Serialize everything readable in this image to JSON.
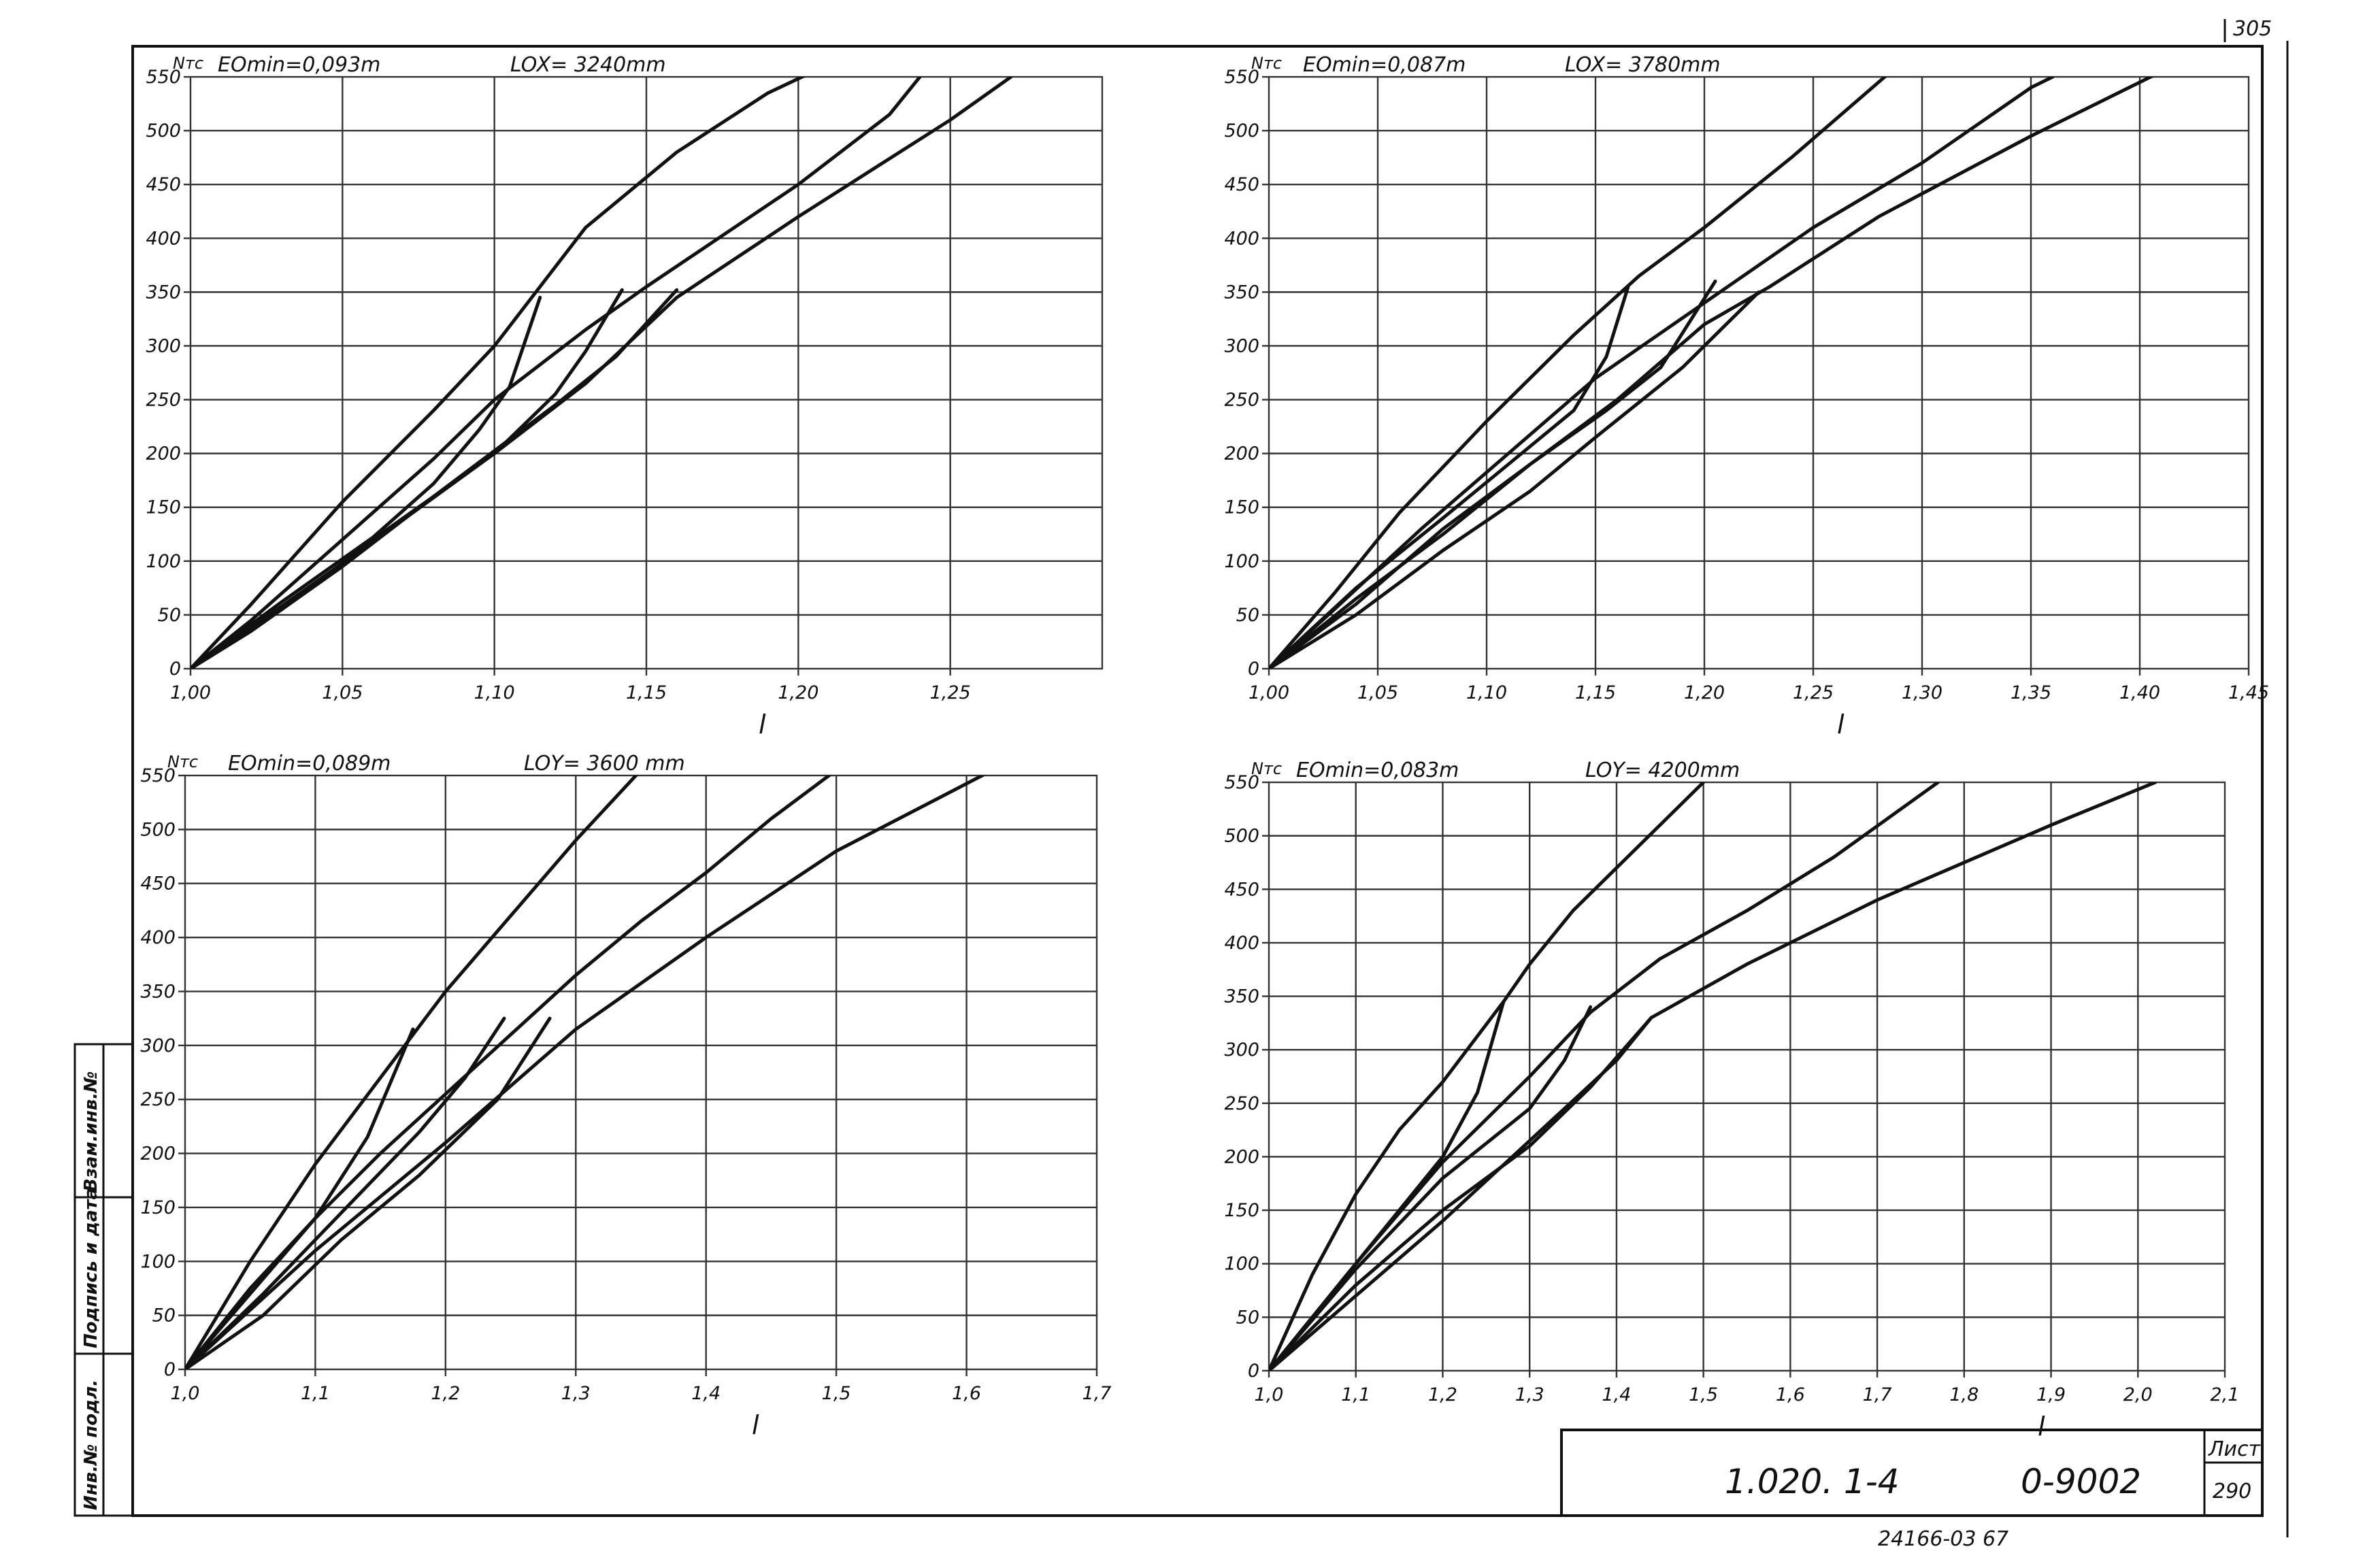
{
  "sheet": {
    "page_number_corner": "305",
    "doc_code": "1.020. 1-4",
    "series_code": "0-9002",
    "sheet_label": "Лист",
    "sheet_number": "290",
    "print_number": "24166-03 67",
    "side_labels": [
      "Инв.№ подл.",
      "Подпись и дата",
      "Взам.инв.№"
    ]
  },
  "chart_data": [
    {
      "type": "line",
      "ylabel": "Nтс",
      "xlabel": "l",
      "header_left": "EOmin=0,093m",
      "header_right": "LOX= 3240mm",
      "xlim": [
        1.0,
        1.3
      ],
      "ylim": [
        0,
        550
      ],
      "xticks": [
        "1,00",
        "1,05",
        "1,10",
        "1,15",
        "1,20",
        "1,25"
      ],
      "xtick_values": [
        1.0,
        1.05,
        1.1,
        1.15,
        1.2,
        1.25
      ],
      "yticks": [
        "0",
        "50",
        "100",
        "150",
        "200",
        "250",
        "300",
        "350",
        "400",
        "450",
        "500",
        "550"
      ],
      "grid": true,
      "series": [
        {
          "x": [
            1.0,
            1.02,
            1.05,
            1.08,
            1.1,
            1.115,
            1.13,
            1.16,
            1.19,
            1.22
          ],
          "y": [
            0,
            60,
            155,
            240,
            300,
            355,
            410,
            480,
            535,
            575
          ]
        },
        {
          "x": [
            1.0,
            1.02,
            1.05,
            1.08,
            1.1,
            1.13,
            1.15,
            1.2,
            1.23,
            1.24
          ],
          "y": [
            0,
            45,
            120,
            195,
            250,
            315,
            355,
            450,
            515,
            550
          ]
        },
        {
          "x": [
            1.0,
            1.03,
            1.06,
            1.1,
            1.13,
            1.16,
            1.2,
            1.25,
            1.27
          ],
          "y": [
            0,
            55,
            120,
            200,
            265,
            345,
            420,
            510,
            550
          ]
        },
        {
          "x": [
            1.0,
            1.03,
            1.06,
            1.08,
            1.095,
            1.105,
            1.115
          ],
          "y": [
            0,
            62,
            122,
            172,
            222,
            262,
            345
          ]
        },
        {
          "x": [
            1.0,
            1.03,
            1.06,
            1.1,
            1.12,
            1.13,
            1.142
          ],
          "y": [
            0,
            58,
            118,
            200,
            255,
            295,
            352
          ]
        },
        {
          "x": [
            1.0,
            1.02,
            1.05,
            1.08,
            1.12,
            1.14,
            1.16
          ],
          "y": [
            0,
            35,
            95,
            160,
            245,
            290,
            352
          ]
        }
      ]
    },
    {
      "type": "line",
      "ylabel": "Nтс",
      "xlabel": "l",
      "header_left": "EOmin=0,087m",
      "header_right": "LOX= 3780mm",
      "xlim": [
        1.0,
        1.45
      ],
      "ylim": [
        0,
        550
      ],
      "xticks": [
        "1,00",
        "1,05",
        "1,10",
        "1,15",
        "1,20",
        "1,25",
        "1,30",
        "1,35",
        "1,40",
        "1,45"
      ],
      "xtick_values": [
        1.0,
        1.05,
        1.1,
        1.15,
        1.2,
        1.25,
        1.3,
        1.35,
        1.4,
        1.45
      ],
      "yticks": [
        "0",
        "50",
        "100",
        "150",
        "200",
        "250",
        "300",
        "350",
        "400",
        "450",
        "500",
        "550"
      ],
      "grid": true,
      "series": [
        {
          "x": [
            1.0,
            1.03,
            1.06,
            1.1,
            1.14,
            1.17,
            1.2,
            1.24,
            1.28,
            1.3
          ],
          "y": [
            0,
            70,
            145,
            230,
            310,
            365,
            410,
            475,
            545,
            580
          ]
        },
        {
          "x": [
            1.0,
            1.03,
            1.07,
            1.11,
            1.15,
            1.2,
            1.25,
            1.3,
            1.35,
            1.36
          ],
          "y": [
            0,
            55,
            130,
            200,
            270,
            340,
            410,
            470,
            540,
            550
          ]
        },
        {
          "x": [
            1.0,
            1.04,
            1.08,
            1.12,
            1.16,
            1.2,
            1.23,
            1.28,
            1.35,
            1.41
          ],
          "y": [
            0,
            60,
            130,
            190,
            250,
            320,
            355,
            420,
            495,
            555
          ]
        },
        {
          "x": [
            1.0,
            1.04,
            1.08,
            1.11,
            1.14,
            1.155,
            1.165
          ],
          "y": [
            0,
            75,
            140,
            190,
            240,
            290,
            355
          ]
        },
        {
          "x": [
            1.0,
            1.04,
            1.08,
            1.12,
            1.155,
            1.18,
            1.205
          ],
          "y": [
            0,
            65,
            125,
            190,
            240,
            280,
            360
          ]
        },
        {
          "x": [
            1.0,
            1.04,
            1.08,
            1.12,
            1.15,
            1.19,
            1.225
          ],
          "y": [
            0,
            50,
            110,
            165,
            215,
            280,
            350
          ]
        }
      ]
    },
    {
      "type": "line",
      "ylabel": "Nтс",
      "xlabel": "l",
      "header_left": "EOmin=0,089m",
      "header_right": "LOY= 3600 mm",
      "xlim": [
        1.0,
        1.7
      ],
      "ylim": [
        0,
        550
      ],
      "xticks": [
        "1,0",
        "1,1",
        "1,2",
        "1,3",
        "1,4",
        "1,5",
        "1,6",
        "1,7"
      ],
      "xtick_values": [
        1.0,
        1.1,
        1.2,
        1.3,
        1.4,
        1.5,
        1.6,
        1.7
      ],
      "yticks": [
        "0",
        "50",
        "100",
        "150",
        "200",
        "250",
        "300",
        "350",
        "400",
        "450",
        "500",
        "550"
      ],
      "grid": true,
      "series": [
        {
          "x": [
            1.0,
            1.05,
            1.1,
            1.15,
            1.2,
            1.25,
            1.3,
            1.35
          ],
          "y": [
            0,
            100,
            190,
            270,
            350,
            420,
            490,
            555
          ]
        },
        {
          "x": [
            1.0,
            1.05,
            1.1,
            1.15,
            1.2,
            1.25,
            1.3,
            1.35,
            1.4,
            1.45,
            1.5
          ],
          "y": [
            0,
            70,
            140,
            200,
            255,
            310,
            365,
            415,
            460,
            510,
            555
          ]
        },
        {
          "x": [
            1.0,
            1.1,
            1.2,
            1.3,
            1.4,
            1.5,
            1.62
          ],
          "y": [
            0,
            110,
            210,
            315,
            400,
            480,
            555
          ]
        },
        {
          "x": [
            1.0,
            1.05,
            1.1,
            1.14,
            1.175
          ],
          "y": [
            0,
            75,
            140,
            215,
            315
          ]
        },
        {
          "x": [
            1.0,
            1.06,
            1.12,
            1.18,
            1.215,
            1.245
          ],
          "y": [
            0,
            70,
            145,
            220,
            270,
            325
          ]
        },
        {
          "x": [
            1.0,
            1.06,
            1.12,
            1.18,
            1.24,
            1.28
          ],
          "y": [
            0,
            50,
            120,
            180,
            250,
            325
          ]
        }
      ]
    },
    {
      "type": "line",
      "ylabel": "Nтс",
      "xlabel": "l",
      "header_left": "EOmin=0,083m",
      "header_right": "LOY= 4200mm",
      "xlim": [
        1.0,
        2.1
      ],
      "ylim": [
        0,
        550
      ],
      "xticks": [
        "1,0",
        "1,1",
        "1,2",
        "1,3",
        "1,4",
        "1,5",
        "1,6",
        "1,7",
        "1,8",
        "1,9",
        "2,0",
        "2,1"
      ],
      "xtick_values": [
        1.0,
        1.1,
        1.2,
        1.3,
        1.4,
        1.5,
        1.6,
        1.7,
        1.8,
        1.9,
        2.0,
        2.1
      ],
      "yticks": [
        "0",
        "50",
        "100",
        "150",
        "200",
        "250",
        "300",
        "350",
        "400",
        "450",
        "500",
        "550"
      ],
      "grid": true,
      "series": [
        {
          "x": [
            1.0,
            1.05,
            1.1,
            1.15,
            1.2,
            1.27,
            1.3,
            1.35,
            1.4,
            1.45,
            1.5
          ],
          "y": [
            0,
            90,
            165,
            225,
            270,
            345,
            380,
            430,
            470,
            510,
            550
          ]
        },
        {
          "x": [
            1.0,
            1.1,
            1.2,
            1.3,
            1.37,
            1.45,
            1.55,
            1.65,
            1.77
          ],
          "y": [
            0,
            100,
            195,
            275,
            335,
            385,
            430,
            480,
            550
          ]
        },
        {
          "x": [
            1.0,
            1.1,
            1.2,
            1.3,
            1.37,
            1.44,
            1.55,
            1.7,
            1.9,
            2.02
          ],
          "y": [
            0,
            80,
            150,
            210,
            265,
            330,
            380,
            440,
            510,
            550
          ]
        },
        {
          "x": [
            1.0,
            1.1,
            1.2,
            1.24,
            1.27
          ],
          "y": [
            0,
            100,
            200,
            260,
            345
          ]
        },
        {
          "x": [
            1.0,
            1.1,
            1.2,
            1.3,
            1.34,
            1.37
          ],
          "y": [
            0,
            95,
            180,
            245,
            290,
            340
          ]
        },
        {
          "x": [
            1.0,
            1.1,
            1.2,
            1.3,
            1.4,
            1.44
          ],
          "y": [
            0,
            70,
            140,
            215,
            290,
            330
          ]
        }
      ]
    }
  ]
}
